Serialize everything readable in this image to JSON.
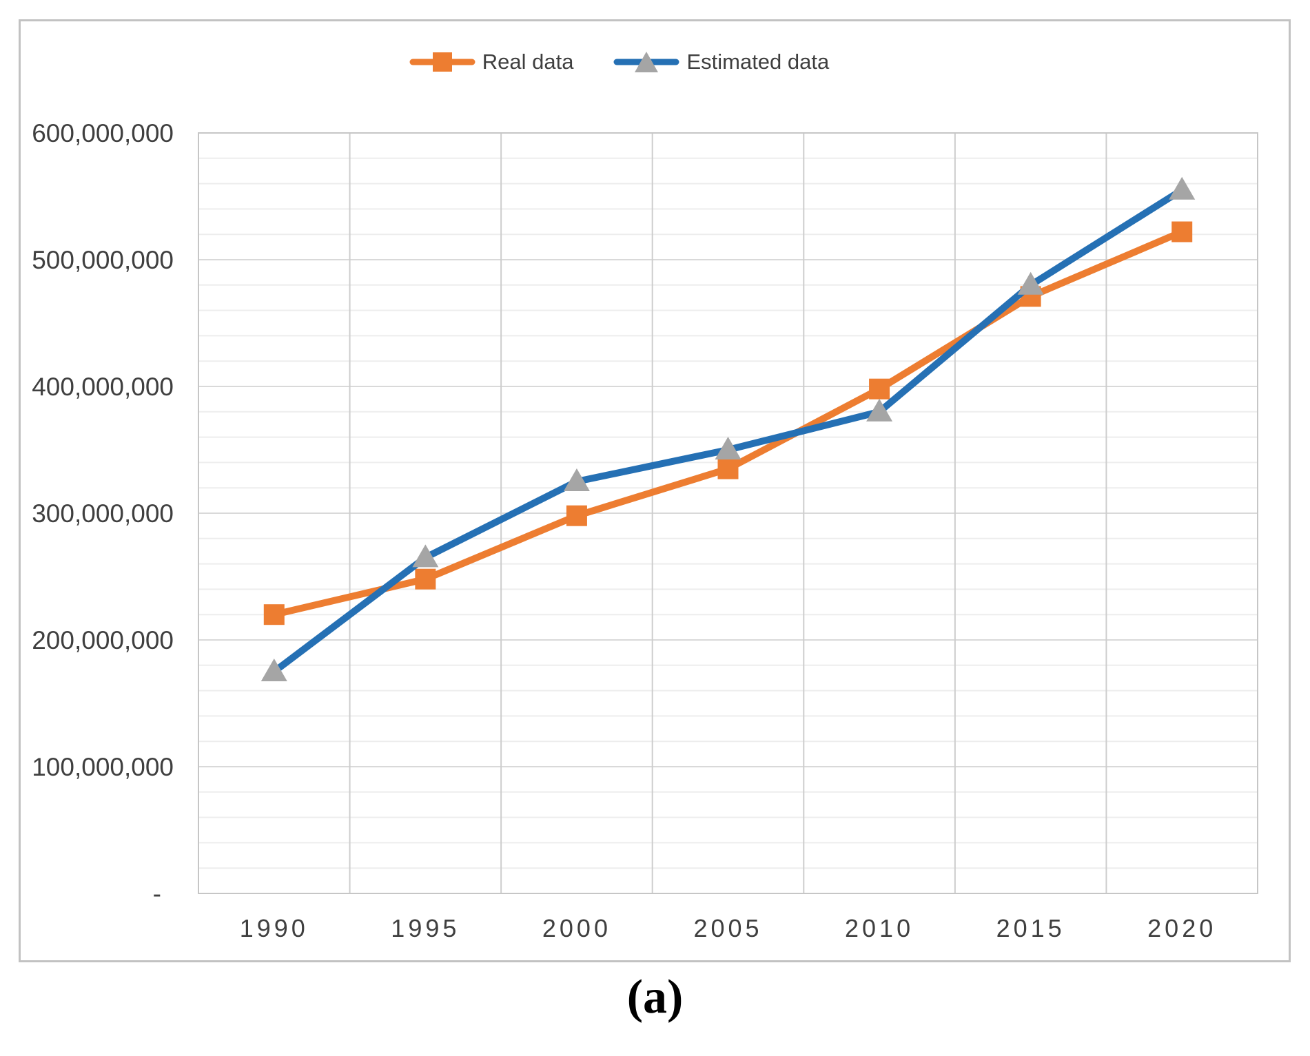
{
  "figure": {
    "caption": "(a)"
  },
  "chart_data": {
    "type": "line",
    "title": "",
    "xlabel": "",
    "ylabel": "",
    "categories": [
      "1990",
      "1995",
      "2000",
      "2005",
      "2010",
      "2015",
      "2020"
    ],
    "series": [
      {
        "name": "Real data",
        "color": "#ED7D31",
        "marker": "square",
        "marker_color": "#ED7D31",
        "values": [
          220000000,
          248000000,
          298000000,
          335000000,
          398000000,
          471000000,
          522000000
        ]
      },
      {
        "name": "Estimated data",
        "color": "#2570B4",
        "marker": "triangle",
        "marker_color": "#A5A5A5",
        "values": [
          175000000,
          265000000,
          325000000,
          350000000,
          380000000,
          480000000,
          555000000
        ]
      }
    ],
    "ylim": [
      0,
      600000000
    ],
    "y_major_unit": 100000000,
    "y_minor_unit": 20000000,
    "y_tick_labels": [
      "-",
      "100,000,000",
      "200,000,000",
      "300,000,000",
      "400,000,000",
      "500,000,000",
      "600,000,000"
    ],
    "zero_tick_label": "-",
    "grid": "horizontal major+minor, vertical at category boundaries",
    "legend_position": "top-center"
  },
  "colors": {
    "axis_text": "#3f3f3f",
    "major_gridline": "#d9d9d9",
    "minor_gridline": "#ededed",
    "vertical_gridline": "#cdcdcd",
    "plot_border": "#c6c6c6",
    "frame_border": "#c2c2c2"
  }
}
